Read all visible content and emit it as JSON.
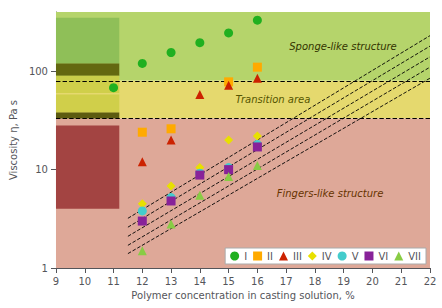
{
  "chart_data": {
    "type": "scatter",
    "xlabel": "Polymer concentration in casting solution, %",
    "ylabel": "Viscosity η, Pa s",
    "log": "y",
    "xlim": [
      9,
      22
    ],
    "ylim": [
      1,
      400
    ],
    "xticks": [
      9,
      10,
      11,
      12,
      13,
      14,
      15,
      16,
      17,
      18,
      19,
      20,
      21,
      22
    ],
    "yticks": [
      1,
      10,
      100
    ],
    "grid": false,
    "legend": "lower right",
    "series": [
      {
        "name": "I",
        "color": "#20b020",
        "marker": "circle",
        "x": [
          11,
          12,
          13,
          14,
          15,
          16
        ],
        "values": [
          68,
          120,
          155,
          195,
          245,
          330
        ]
      },
      {
        "name": "II",
        "color": "#ffaa00",
        "marker": "square",
        "x": [
          12,
          13,
          15,
          16
        ],
        "values": [
          24,
          26,
          78,
          110
        ]
      },
      {
        "name": "III",
        "color": "#cc2200",
        "marker": "triangle",
        "x": [
          12,
          13,
          14,
          15,
          16
        ],
        "values": [
          12,
          20,
          58,
          72,
          85
        ]
      },
      {
        "name": "IV",
        "color": "#e8e000",
        "marker": "diamond",
        "x": [
          12,
          13,
          14,
          15,
          16
        ],
        "values": [
          4.5,
          6.8,
          10.5,
          20,
          22
        ]
      },
      {
        "name": "V",
        "color": "#44cccc",
        "marker": "circle",
        "x": [
          12,
          13,
          14,
          15,
          16
        ],
        "values": [
          3.8,
          5.2,
          9.2,
          10.5,
          18
        ]
      },
      {
        "name": "VI",
        "color": "#882299",
        "marker": "square",
        "x": [
          12,
          13,
          14,
          15,
          16
        ],
        "values": [
          3.0,
          4.8,
          8.8,
          10.0,
          17
        ]
      },
      {
        "name": "VII",
        "color": "#88cc44",
        "marker": "triangle",
        "x": [
          12,
          13,
          14,
          15,
          16
        ],
        "values": [
          1.5,
          2.8,
          5.5,
          8.5,
          11
        ]
      }
    ],
    "trend_lines": [
      {
        "x": [
          11.5,
          22
        ],
        "values": [
          1.4,
          85
        ],
        "color": "#000000",
        "line_style": "dashed"
      },
      {
        "x": [
          11.5,
          22
        ],
        "values": [
          1.7,
          110
        ],
        "color": "#000000",
        "line_style": "dashed"
      },
      {
        "x": [
          11.5,
          22
        ],
        "values": [
          2.1,
          140
        ],
        "color": "#000000",
        "line_style": "dashed"
      },
      {
        "x": [
          11.5,
          22
        ],
        "values": [
          2.6,
          180
        ],
        "color": "#000000",
        "line_style": "dashed"
      },
      {
        "x": [
          11.5,
          22
        ],
        "values": [
          3.2,
          230
        ],
        "color": "#000000",
        "line_style": "dashed"
      }
    ],
    "dashed_lines": [
      80,
      33
    ],
    "regions": [
      {
        "from": 80,
        "to": 400,
        "color": "#b5d46b",
        "label": "Sponge-like structure",
        "label_color": "#333300"
      },
      {
        "from": 33,
        "to": 80,
        "color": "#e5d96e",
        "label": "Transition area",
        "label_color": "#555500"
      },
      {
        "from": 1,
        "to": 33,
        "color": "#dea898",
        "label": "Fingers-like structure",
        "label_color": "#663300"
      }
    ],
    "image_boxes": [
      {
        "x": [
          9,
          11.2
        ],
        "y": [
          120,
          350
        ],
        "color": "#88bb55"
      },
      {
        "x": [
          9,
          11.2
        ],
        "y": [
          90,
          120
        ],
        "color": "#555500"
      },
      {
        "x": [
          9,
          11.2
        ],
        "y": [
          60,
          90
        ],
        "color": "#cccc44"
      },
      {
        "x": [
          9,
          11.2
        ],
        "y": [
          38,
          58
        ],
        "color": "#cccc44"
      },
      {
        "x": [
          9,
          11.2
        ],
        "y": [
          33,
          38
        ],
        "color": "#444400"
      },
      {
        "x": [
          9,
          11.2
        ],
        "y": [
          4,
          28
        ],
        "color": "#993333"
      }
    ]
  }
}
